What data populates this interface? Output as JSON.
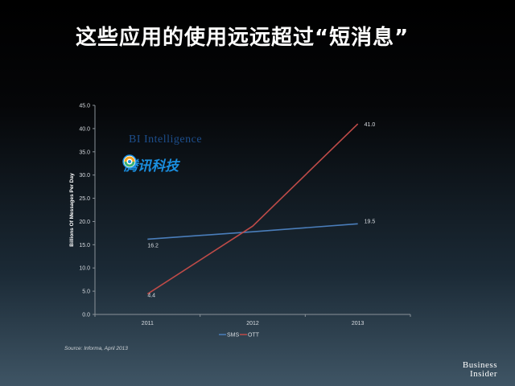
{
  "slide_title": "这些应用的使用远远超过“短消息”",
  "source": "Source: Informa, April 2013",
  "bi_logo_text": "BI Intelligence",
  "tencent_logo_text": "腾讯科技",
  "business_insider_line1": "Business",
  "business_insider_line2": "Insider",
  "chart_data": {
    "type": "line",
    "categories": [
      "2011",
      "2012",
      "2013"
    ],
    "series": [
      {
        "name": "SMS",
        "values": [
          16.2,
          17.8,
          19.5
        ],
        "labels": [
          "16.2",
          "",
          "19.5"
        ],
        "color": "#4a7ebb"
      },
      {
        "name": "OTT",
        "values": [
          4.4,
          19.0,
          41.0
        ],
        "labels": [
          "4.4",
          "",
          "41.0"
        ],
        "color": "#be4b48"
      }
    ],
    "ylabel": "Billions Of Messages Per Day",
    "ylim": [
      0,
      45
    ],
    "yticks": [
      "0.0",
      "5.0",
      "10.0",
      "15.0",
      "20.0",
      "25.0",
      "30.0",
      "35.0",
      "40.0",
      "45.0"
    ],
    "legend": "bottom",
    "grid": false
  }
}
